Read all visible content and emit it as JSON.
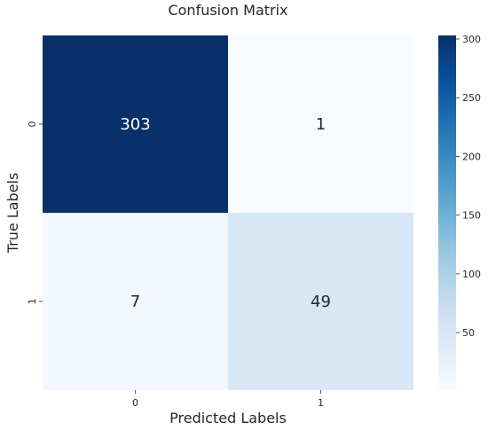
{
  "chart_data": {
    "type": "heatmap",
    "title": "Confusion Matrix",
    "xlabel": "Predicted Labels",
    "ylabel": "True Labels",
    "x_categories": [
      "0",
      "1"
    ],
    "y_categories": [
      "0",
      "1"
    ],
    "values": [
      [
        303,
        1
      ],
      [
        7,
        49
      ]
    ],
    "colormap": "Blues",
    "color_range": [
      1,
      303
    ],
    "colorbar_ticks": [
      50,
      100,
      150,
      200,
      250,
      300
    ],
    "colorbar_tick_labels": [
      "50",
      "100",
      "150",
      "200",
      "250",
      "300"
    ],
    "annotations": true,
    "legend": "colorbar-right"
  }
}
